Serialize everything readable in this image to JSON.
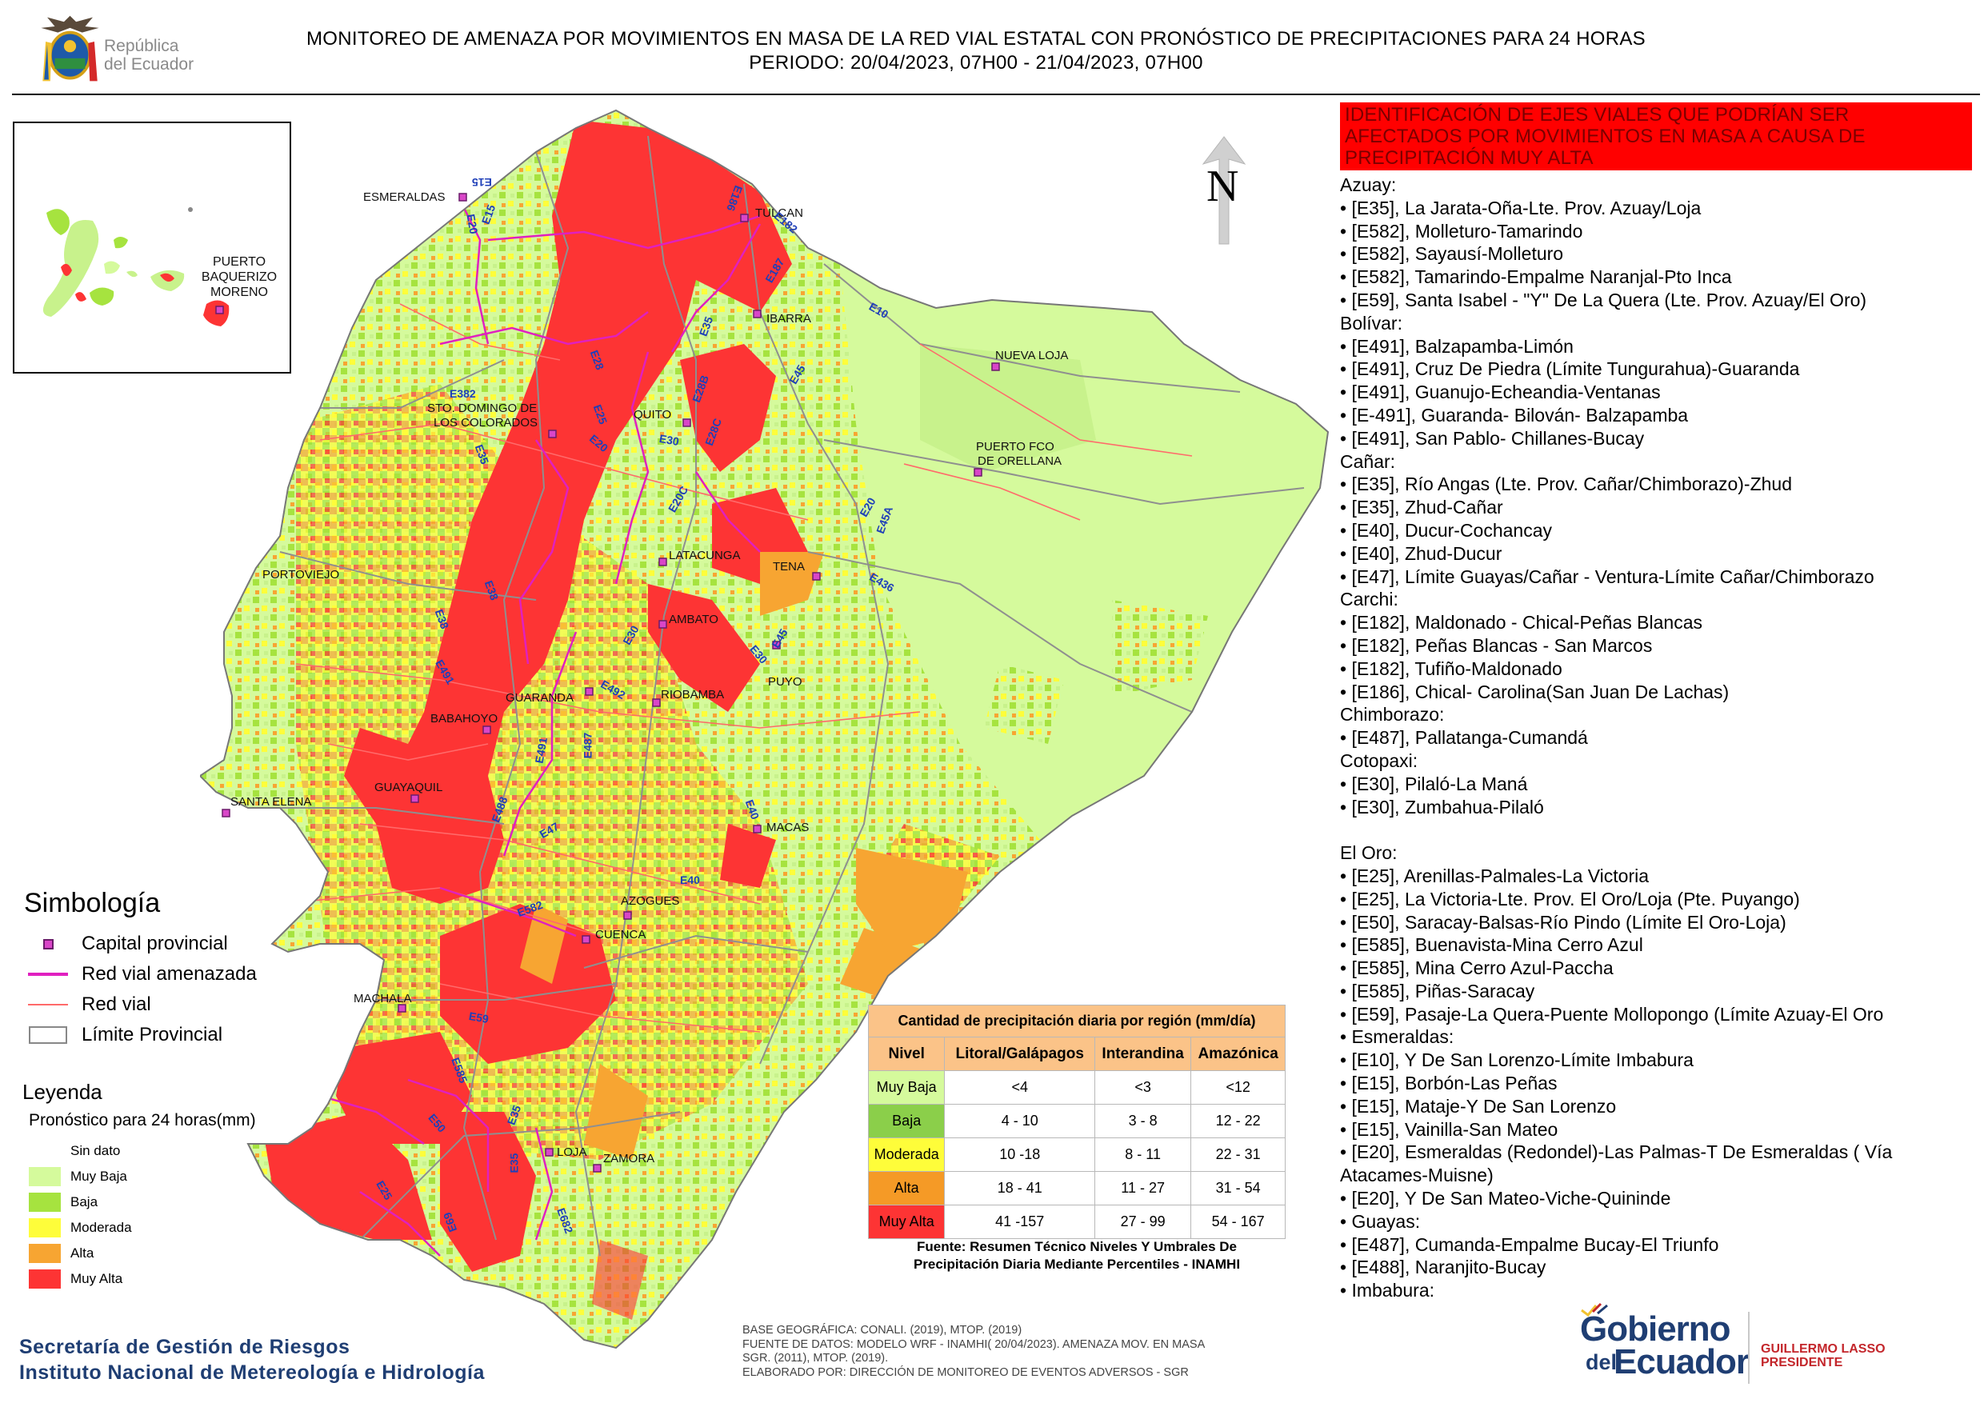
{
  "header": {
    "logo_line1": "República",
    "logo_line2": "del Ecuador",
    "title_line1": "MONITOREO DE AMENAZA POR MOVIMIENTOS EN MASA DE LA RED VIAL  ESTATAL  CON PRONÓSTICO  DE  PRECIPITACIONES PARA 24 HORAS",
    "title_line2": "PERIODO: 20/04/2023, 07H00 - 21/04/2023, 07H00"
  },
  "map": {
    "north_label": "N",
    "inset_label": "PUERTO\nBAQUERIZO\nMORENO",
    "inset_label_lines": [
      "PUERTO",
      "BAQUERIZO",
      "MORENO"
    ],
    "cities": [
      "ESMERALDAS",
      "TULCAN",
      "IBARRA",
      "NUEVA LOJA",
      "STO. DOMINGO DE",
      "LOS COLORADOS",
      "QUITO",
      "PUERTO FCO",
      "DE ORELLANA",
      "LATACUNGA",
      "TENA",
      "PORTOVIEJO",
      "AMBATO",
      "PUYO",
      "GUARANDA",
      "RIOBAMBA",
      "BABAHOYO",
      "GUAYAQUIL",
      "SANTA ELENA",
      "MACAS",
      "AZOGUES",
      "CUENCA",
      "MACHALA",
      "LOJA",
      "ZAMORA"
    ],
    "roads": [
      "E15",
      "E15",
      "E20",
      "E186",
      "E182",
      "E187",
      "E10",
      "E28",
      "E35",
      "E382",
      "E25",
      "E20",
      "E28B",
      "E28C",
      "E30",
      "E45",
      "E35",
      "E20",
      "E45A",
      "E20C",
      "E436",
      "E38",
      "E48",
      "E30",
      "E491",
      "E492",
      "E30",
      "E45",
      "E491",
      "E487",
      "E488",
      "E47",
      "E40",
      "E40",
      "E582",
      "E59",
      "E585",
      "E35",
      "E50",
      "E682",
      "E69",
      "E35",
      "E25"
    ]
  },
  "colors": {
    "muy_baja": "#d5fa9c",
    "baja": "#a6e33f",
    "moderada": "#fefd3a",
    "alta": "#f7a532",
    "muy_alta": "#fd3434",
    "threatened_road": "#e020c0",
    "road": "#ff6a6a",
    "accent_blue": "#1f3e73"
  },
  "alert_title": "IDENTIFICACIÓN DE EJES VIALES QUE PODRÍAN SER AFECTADOS POR MOVIMIENTOS EN MASA A CAUSA DE PRECIPITACIÓN MUY ALTA",
  "ejes": [
    {
      "t": "p",
      "text": "Azuay:"
    },
    {
      "t": "i",
      "text": "[E35], La Jarata-Oña-Lte. Prov. Azuay/Loja"
    },
    {
      "t": "i",
      "text": "[E582], Molleturo-Tamarindo"
    },
    {
      "t": "i",
      "text": "[E582], Sayausí-Molleturo"
    },
    {
      "t": "i",
      "text": "[E582], Tamarindo-Empalme Naranjal-Pto Inca"
    },
    {
      "t": "i",
      "text": "[E59], Santa Isabel - \"Y\" De La Quera (Lte. Prov. Azuay/El Oro)"
    },
    {
      "t": "p",
      "text": "Bolívar:"
    },
    {
      "t": "i",
      "text": "[E491], Balzapamba-Limón"
    },
    {
      "t": "i",
      "text": "[E491], Cruz De Piedra (Límite Tungurahua)-Guaranda"
    },
    {
      "t": "i",
      "text": "[E491], Guanujo-Echeandia-Ventanas"
    },
    {
      "t": "i",
      "text": "[E-491], Guaranda- Bilován- Balzapamba"
    },
    {
      "t": "i",
      "text": "[E491], San Pablo- Chillanes-Bucay"
    },
    {
      "t": "p",
      "text": "Cañar:"
    },
    {
      "t": "i",
      "text": "[E35], Río Angas (Lte. Prov. Cañar/Chimborazo)-Zhud"
    },
    {
      "t": "i",
      "text": "[E35], Zhud-Cañar"
    },
    {
      "t": "i",
      "text": "[E40], Ducur-Cochancay"
    },
    {
      "t": "i",
      "text": "[E40], Zhud-Ducur"
    },
    {
      "t": "i",
      "text": "[E47], Límite Guayas/Cañar - Ventura-Límite Cañar/Chimborazo"
    },
    {
      "t": "p",
      "text": "Carchi:"
    },
    {
      "t": "i",
      "text": "[E182], Maldonado - Chical-Peñas Blancas"
    },
    {
      "t": "i",
      "text": "[E182], Peñas Blancas - San Marcos"
    },
    {
      "t": "i",
      "text": "[E182], Tufiño-Maldonado"
    },
    {
      "t": "i",
      "text": "[E186], Chical- Carolina(San Juan De Lachas)"
    },
    {
      "t": "p",
      "text": "Chimborazo:"
    },
    {
      "t": "i",
      "text": "[E487], Pallatanga-Cumandá"
    },
    {
      "t": "p",
      "text": "Cotopaxi:"
    },
    {
      "t": "i",
      "text": "[E30], Pilaló-La Maná"
    },
    {
      "t": "i",
      "text": "[E30], Zumbahua-Pilaló"
    },
    {
      "t": "b",
      "text": ""
    },
    {
      "t": "p",
      "text": "El Oro:"
    },
    {
      "t": "i",
      "text": "[E25], Arenillas-Palmales-La Victoria"
    },
    {
      "t": "i",
      "text": "[E25], La Victoria-Lte. Prov. El Oro/Loja (Pte. Puyango)"
    },
    {
      "t": "i",
      "text": "[E50], Saracay-Balsas-Río Pindo (Límite El Oro-Loja)"
    },
    {
      "t": "i",
      "text": "[E585], Buenavista-Mina Cerro Azul"
    },
    {
      "t": "i",
      "text": "[E585], Mina Cerro Azul-Paccha"
    },
    {
      "t": "i",
      "text": "[E585], Piñas-Saracay"
    },
    {
      "t": "i",
      "text": "[E59], Pasaje-La Quera-Puente Mollopongo (Límite Azuay-El Oro"
    },
    {
      "t": "i",
      "text": "Esmeraldas:"
    },
    {
      "t": "i",
      "text": "[E10], Y De San Lorenzo-Límite Imbabura"
    },
    {
      "t": "i",
      "text": "[E15], Borbón-Las Peñas"
    },
    {
      "t": "i",
      "text": "[E15], Mataje-Y De San Lorenzo"
    },
    {
      "t": "i",
      "text": "[E15], Vainilla-San Mateo"
    },
    {
      "t": "i",
      "text": "[E20], Esmeraldas (Redondel)-Las Palmas-T De Esmeraldas ( Vía"
    },
    {
      "t": "p",
      "text": "Atacames-Muisne)"
    },
    {
      "t": "i",
      "text": "[E20], Y De San Mateo-Viche-Quininde"
    },
    {
      "t": "i",
      "text": "Guayas:"
    },
    {
      "t": "i",
      "text": "[E487], Cumanda-Empalme Bucay-El Triunfo"
    },
    {
      "t": "i",
      "text": "[E488], Naranjito-Bucay"
    },
    {
      "t": "i",
      "text": "Imbabura:"
    }
  ],
  "simbologia": {
    "title": "Simbología",
    "items": [
      "Capital provincial",
      "Red vial amenazada",
      "Red vial",
      "Límite Provincial"
    ]
  },
  "leyenda": {
    "title": "Leyenda",
    "subtitle": "Pronóstico para 24 horas(mm)",
    "items": [
      "Sin dato",
      "Muy Baja",
      "Baja",
      "Moderada",
      "Alta",
      "Muy Alta"
    ]
  },
  "table": {
    "title": "Cantidad de precipitación diaria por región (mm/día)",
    "headers": [
      "Nivel",
      "Litoral/Galápagos",
      "Interandina",
      "Amazónica"
    ],
    "rows": [
      {
        "nivel": "Muy Baja",
        "litoral": "<4",
        "interandina": "<3",
        "amazonica": "<12",
        "color": "#d5fa9c"
      },
      {
        "nivel": "Baja",
        "litoral": "4 - 10",
        "interandina": "3 - 8",
        "amazonica": "12 - 22",
        "color": "#8bcf4a"
      },
      {
        "nivel": "Moderada",
        "litoral": "10 -18",
        "interandina": "8 - 11",
        "amazonica": "22 - 31",
        "color": "#fefd3a"
      },
      {
        "nivel": "Alta",
        "litoral": "18 - 41",
        "interandina": "11 - 27",
        "amazonica": "31 - 54",
        "color": "#f59a26"
      },
      {
        "nivel": "Muy Alta",
        "litoral": "41 -157",
        "interandina": "27 - 99",
        "amazonica": "54 - 167",
        "color": "#fd3434"
      }
    ],
    "source_line1": "Fuente: Resumen Técnico Niveles Y Umbrales De",
    "source_line2": "Precipitación Diaria Mediante Percentiles - INAMHI"
  },
  "footer": {
    "org1": "Secretaría de Gestión de Riesgos",
    "org2": "Instituto Nacional de Metereología e Hidrología",
    "base1": "BASE GEOGRÁFICA: CONALI. (2019), MTOP. (2019)",
    "base2": "FUENTE DE DATOS: MODELO WRF - INAMHI( 20/04/2023).  AMENAZA MOV. EN MASA",
    "base3": "SGR. (2011), MTOP. (2019).",
    "base4": "ELABORADO POR: DIRECCIÓN DE MONITOREO DE EVENTOS ADVERSOS - SGR",
    "gob1": "Gobierno",
    "gob2": "del",
    "gob3": "Ecuador",
    "pres1": "GUILLERMO LASSO",
    "pres2": "PRESIDENTE"
  }
}
